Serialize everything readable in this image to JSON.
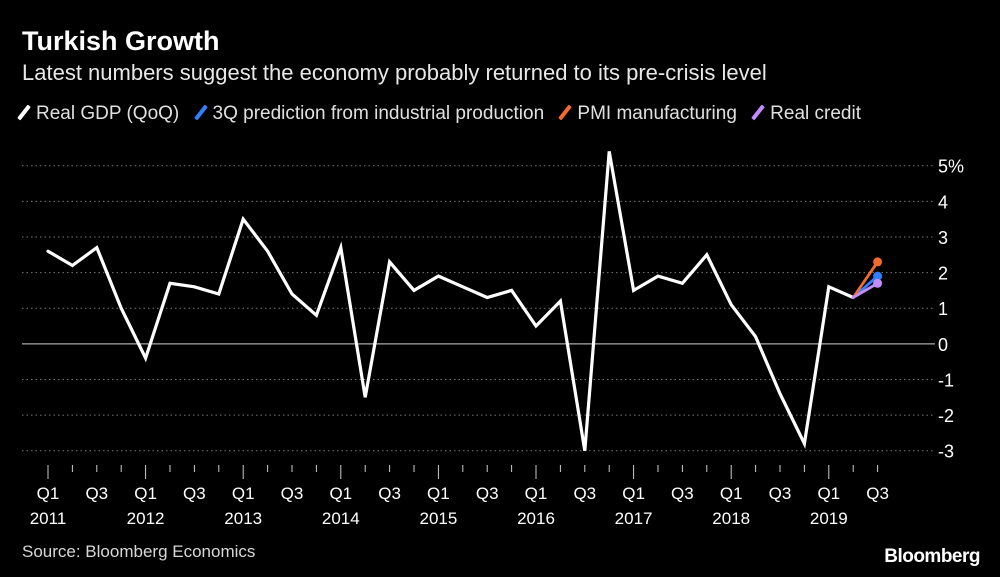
{
  "header": {
    "title": "Turkish Growth",
    "subtitle": "Latest numbers suggest the economy probably returned to its pre-crisis level"
  },
  "footer": {
    "source": "Source: Bloomberg Economics",
    "brand": "Bloomberg"
  },
  "chart_data": {
    "type": "line",
    "title": "Turkish Growth",
    "xlabel": "",
    "ylabel": "",
    "ylim": [
      -3.4,
      5.3
    ],
    "y_ticks": [
      5,
      4,
      3,
      2,
      1,
      0,
      -1,
      -2,
      -3
    ],
    "y_tick_labels": [
      "5%",
      "4",
      "3",
      "2",
      "1",
      "0",
      "-1",
      "-2",
      "-3"
    ],
    "grid": true,
    "x_tick_labels": [
      {
        "q": "Q1",
        "year": "2011",
        "index": 0
      },
      {
        "q": "Q3",
        "year": "",
        "index": 2
      },
      {
        "q": "Q1",
        "year": "2012",
        "index": 4
      },
      {
        "q": "Q3",
        "year": "",
        "index": 6
      },
      {
        "q": "Q1",
        "year": "2013",
        "index": 8
      },
      {
        "q": "Q3",
        "year": "",
        "index": 10
      },
      {
        "q": "Q1",
        "year": "2014",
        "index": 12
      },
      {
        "q": "Q3",
        "year": "",
        "index": 14
      },
      {
        "q": "Q1",
        "year": "2015",
        "index": 16
      },
      {
        "q": "Q3",
        "year": "",
        "index": 18
      },
      {
        "q": "Q1",
        "year": "2016",
        "index": 20
      },
      {
        "q": "Q3",
        "year": "",
        "index": 22
      },
      {
        "q": "Q1",
        "year": "2017",
        "index": 24
      },
      {
        "q": "Q3",
        "year": "",
        "index": 26
      },
      {
        "q": "Q1",
        "year": "2018",
        "index": 28
      },
      {
        "q": "Q3",
        "year": "",
        "index": 30
      },
      {
        "q": "Q1",
        "year": "2019",
        "index": 32
      },
      {
        "q": "Q3",
        "year": "",
        "index": 34
      }
    ],
    "series": [
      {
        "name": "Real GDP (QoQ)",
        "color": "#ffffff",
        "x": [
          0,
          1,
          2,
          3,
          4,
          5,
          6,
          7,
          8,
          9,
          10,
          11,
          12,
          13,
          14,
          15,
          16,
          17,
          18,
          19,
          20,
          21,
          22,
          23,
          24,
          25,
          26,
          27,
          28,
          29,
          30,
          31,
          32,
          33
        ],
        "values": [
          2.6,
          2.2,
          2.7,
          1.0,
          -0.4,
          1.7,
          1.6,
          1.4,
          3.5,
          2.6,
          1.4,
          0.8,
          2.7,
          -1.5,
          2.3,
          1.5,
          1.9,
          1.6,
          1.3,
          1.5,
          0.5,
          1.2,
          -3.0,
          5.4,
          1.5,
          1.9,
          1.7,
          2.5,
          1.1,
          0.2,
          -1.4,
          -2.8,
          1.6,
          1.3
        ]
      },
      {
        "name": "3Q prediction from industrial production",
        "color": "#2f7fff",
        "x": [
          33,
          34
        ],
        "values": [
          1.3,
          1.9
        ]
      },
      {
        "name": "PMI manufacturing",
        "color": "#f26a2e",
        "x": [
          33,
          34
        ],
        "values": [
          1.3,
          2.3
        ]
      },
      {
        "name": "Real credit",
        "color": "#c28bff",
        "x": [
          33,
          34
        ],
        "values": [
          1.3,
          1.7
        ]
      }
    ]
  }
}
